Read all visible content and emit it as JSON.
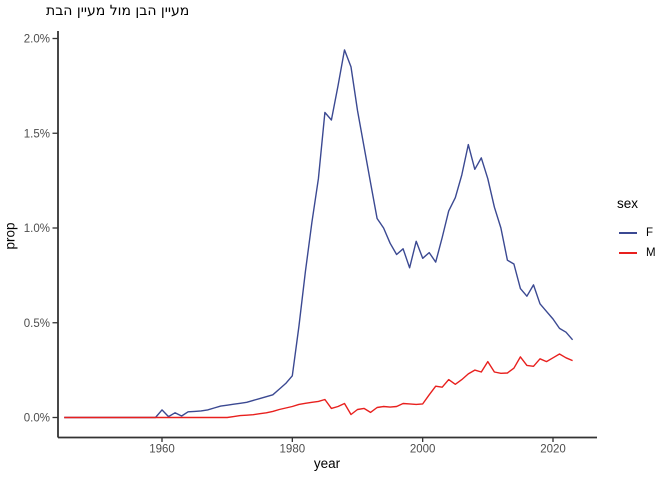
{
  "chart_data": {
    "type": "line",
    "title": "מעיין הבן מול מעיין הבת",
    "xlabel": "year",
    "ylabel": "prop",
    "legend": {
      "title": "sex",
      "position": "right"
    },
    "grid": false,
    "theme": "classic",
    "xlim": [
      1944,
      2027
    ],
    "ylim_percent": [
      -0.1,
      2.03
    ],
    "x_ticks": {
      "values": [
        1960,
        1980,
        2000,
        2020
      ],
      "labels": [
        "1960",
        "1980",
        "2000",
        "2020"
      ]
    },
    "y_ticks": {
      "values": [
        0,
        0.5,
        1.0,
        1.5,
        2.0
      ],
      "labels": [
        "0.0%",
        "0.5%",
        "1.0%",
        "1.5%",
        "2.0%"
      ]
    },
    "unit": "percent",
    "years": {
      "start": 1945,
      "end": 2023
    },
    "series": [
      {
        "name": "F",
        "color": "#3B4992",
        "values": [
          0,
          0,
          0,
          0,
          0,
          0,
          0,
          0,
          0,
          0,
          0,
          0,
          0,
          0,
          0,
          0.04,
          0.005,
          0.025,
          0.008,
          0.03,
          0.032,
          0.035,
          0.04,
          0.05,
          0.06,
          0.065,
          0.07,
          0.075,
          0.08,
          0.09,
          0.1,
          0.11,
          0.12,
          0.15,
          0.18,
          0.22,
          0.48,
          0.77,
          1.03,
          1.26,
          1.61,
          1.57,
          1.75,
          1.94,
          1.85,
          1.62,
          1.43,
          1.24,
          1.05,
          1.0,
          0.92,
          0.86,
          0.89,
          0.79,
          0.93,
          0.84,
          0.87,
          0.82,
          0.95,
          1.09,
          1.16,
          1.28,
          1.44,
          1.31,
          1.37,
          1.26,
          1.11,
          1.0,
          0.83,
          0.81,
          0.68,
          0.64,
          0.7,
          0.6,
          0.56,
          0.52,
          0.47,
          0.45,
          0.41
        ]
      },
      {
        "name": "M",
        "color": "#E8201E",
        "values": [
          0,
          0,
          0,
          0,
          0,
          0,
          0,
          0,
          0,
          0,
          0,
          0,
          0,
          0,
          0,
          0,
          0,
          0,
          0,
          0,
          0,
          0,
          0,
          0,
          0,
          0,
          0.005,
          0.01,
          0.012,
          0.015,
          0.02,
          0.025,
          0.032,
          0.042,
          0.05,
          0.058,
          0.069,
          0.075,
          0.08,
          0.085,
          0.095,
          0.048,
          0.058,
          0.074,
          0.016,
          0.042,
          0.048,
          0.027,
          0.053,
          0.058,
          0.055,
          0.058,
          0.074,
          0.072,
          0.069,
          0.072,
          0.12,
          0.165,
          0.16,
          0.2,
          0.175,
          0.2,
          0.23,
          0.25,
          0.24,
          0.295,
          0.24,
          0.233,
          0.235,
          0.26,
          0.32,
          0.275,
          0.27,
          0.31,
          0.295,
          0.315,
          0.335,
          0.315,
          0.3
        ]
      }
    ]
  }
}
